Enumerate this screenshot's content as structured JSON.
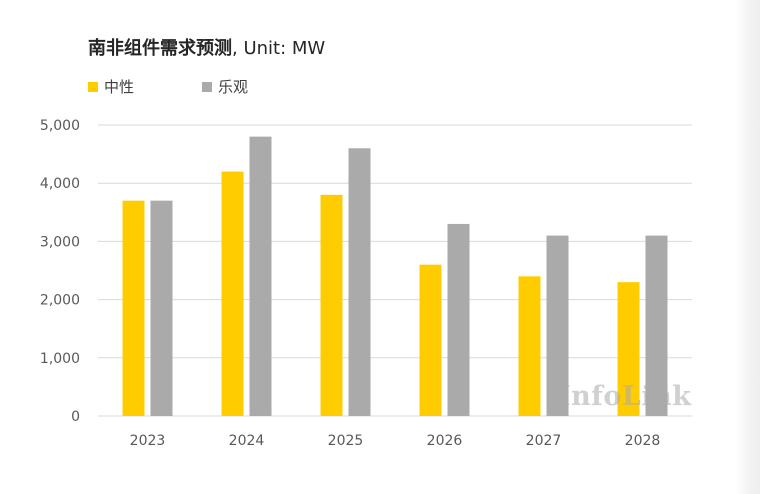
{
  "title": {
    "main": "南非组件需求预测",
    "unit": ", Unit: MW"
  },
  "watermark": "InfoLink",
  "colors": {
    "neutral": "#FFCC00",
    "optimistic": "#AAAAAA",
    "grid": "#D9D9D9",
    "axis_text": "#595959"
  },
  "chart_data": {
    "type": "bar",
    "categories": [
      "2023",
      "2024",
      "2025",
      "2026",
      "2027",
      "2028"
    ],
    "series": [
      {
        "name": "中性",
        "values": [
          3700,
          4200,
          3800,
          2600,
          2400,
          2300
        ],
        "color": "#FFCC00"
      },
      {
        "name": "乐观",
        "values": [
          3700,
          4800,
          4600,
          3300,
          3100,
          3100
        ],
        "color": "#AAAAAA"
      }
    ],
    "title": "南非组件需求预测, Unit: MW",
    "xlabel": "",
    "ylabel": "",
    "ylim": [
      0,
      5000
    ],
    "yticks": [
      0,
      1000,
      2000,
      3000,
      4000,
      5000
    ],
    "ytick_labels": [
      "0",
      "1,000",
      "2,000",
      "3,000",
      "4,000",
      "5,000"
    ],
    "grid": true,
    "legend_position": "top-left"
  }
}
